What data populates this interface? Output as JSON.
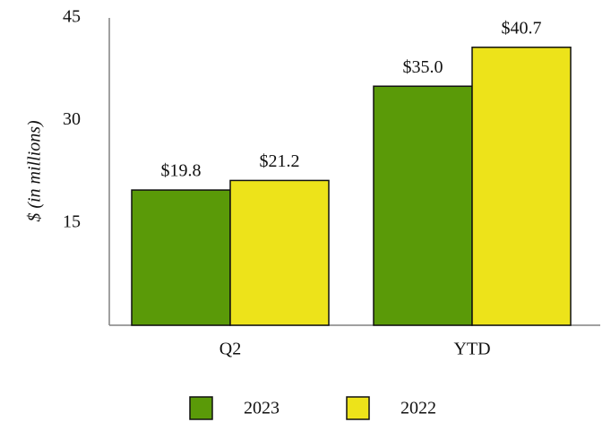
{
  "chart_data": {
    "type": "bar",
    "y_label": "$ (in millions)",
    "categories": [
      "Q2",
      "YTD"
    ],
    "series": [
      {
        "name": "2023",
        "color": "#5a9a08",
        "values": [
          19.8,
          35.0
        ],
        "value_labels": [
          "$19.8",
          "$35.0"
        ]
      },
      {
        "name": "2022",
        "color": "#ede31a",
        "values": [
          21.2,
          40.7
        ],
        "value_labels": [
          "$21.2",
          "$40.7"
        ]
      }
    ],
    "ylim": [
      0,
      45
    ],
    "yticks": [
      15,
      30,
      45
    ],
    "grid": false
  }
}
